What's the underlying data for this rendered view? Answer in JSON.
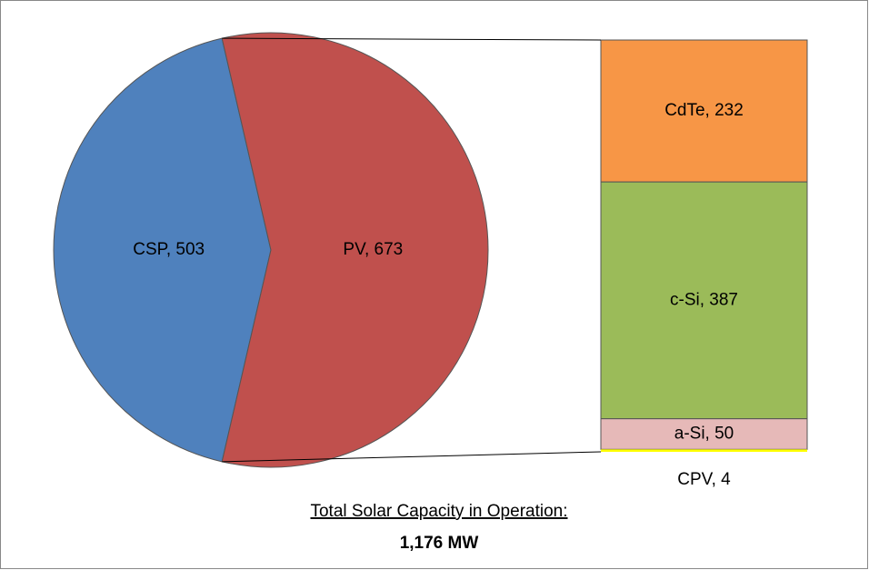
{
  "chart_data": {
    "type": "pie-of-bar",
    "title": "Total Solar Capacity in Operation:",
    "subtitle": "1,176 MW",
    "values": [
      503,
      673
    ],
    "value_labels": [
      "CSP, 503",
      "PV, 673"
    ],
    "colors": [
      "#4f81bd",
      "#c0504d"
    ],
    "breakdown": {
      "values": [
        232,
        387,
        50,
        4
      ],
      "value_labels": [
        "CdTe, 232",
        "c-Si, 387",
        "a-Si, 50",
        "CPV, 4"
      ],
      "colors": [
        "#f79646",
        "#9bbb59",
        "#e6b9b8",
        "#ffff00"
      ]
    }
  }
}
